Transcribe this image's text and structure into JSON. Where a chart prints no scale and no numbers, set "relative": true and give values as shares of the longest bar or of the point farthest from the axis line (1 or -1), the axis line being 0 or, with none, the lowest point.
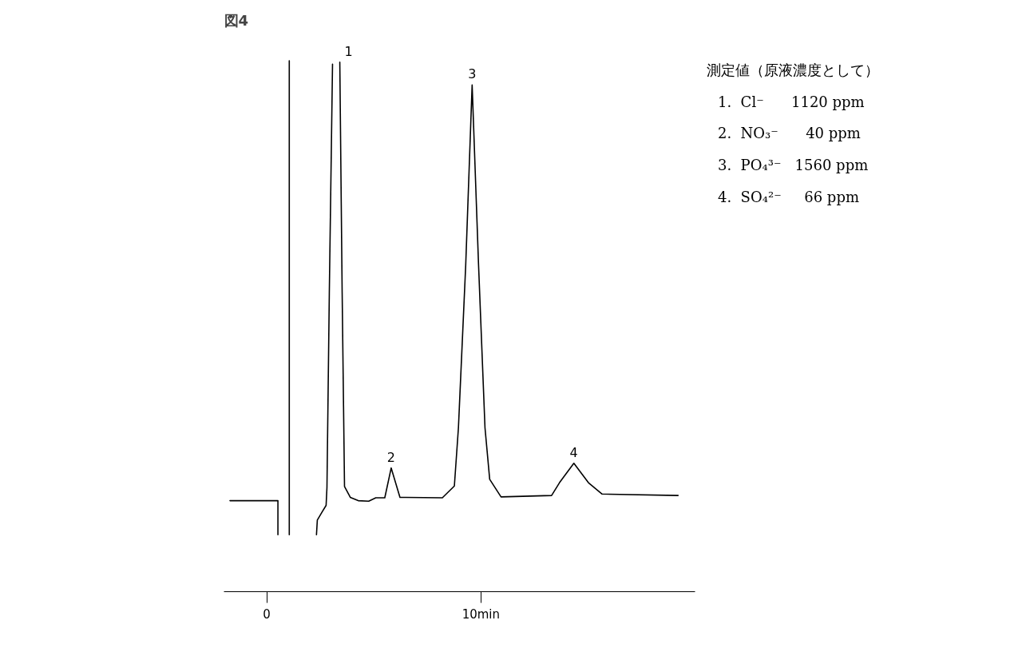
{
  "chart_data": {
    "type": "line",
    "title": "図4",
    "relative": true,
    "grid": false,
    "tick_labels": "x",
    "xlim": [
      -2,
      20
    ],
    "xticks": [
      0,
      {
        "value": 10,
        "label": "10min"
      }
    ],
    "series": [
      {
        "color": "#000000",
        "x": [
          -1.72,
          0.52,
          0.52
        ],
        "values": [
          0.072,
          0.072,
          0
        ]
      },
      {
        "color": "#000000",
        "x": [
          1.05,
          1.05
        ],
        "values": [
          0,
          1.0
        ]
      },
      {
        "color": "#000000",
        "x": [
          2.32,
          2.36,
          2.58,
          2.77,
          2.81,
          2.92,
          3.07
        ],
        "values": [
          0,
          0.031,
          0.048,
          0.062,
          0.1,
          0.51,
          0.993
        ]
      },
      {
        "color": "#000000",
        "x": [
          3.41,
          3.52,
          3.63,
          3.9,
          4.27,
          4.76,
          5.09,
          5.51,
          5.81,
          6.22,
          8.2,
          8.76,
          8.95,
          9.29,
          9.59,
          9.89,
          10.19,
          10.41,
          10.94,
          13.3,
          13.67,
          14.34,
          15.02,
          15.66,
          19.21
        ],
        "values": [
          0.997,
          0.51,
          0.102,
          0.079,
          0.072,
          0.071,
          0.078,
          0.078,
          0.141,
          0.079,
          0.078,
          0.103,
          0.226,
          0.569,
          0.949,
          0.569,
          0.226,
          0.117,
          0.08,
          0.083,
          0.11,
          0.151,
          0.11,
          0.086,
          0.083
        ]
      }
    ],
    "annotations": [
      {
        "text": "1",
        "x": 3.41,
        "y": 0.997
      },
      {
        "text": "2",
        "x": 5.81,
        "y": 0.141
      },
      {
        "text": "3",
        "x": 9.59,
        "y": 0.949
      },
      {
        "text": "4",
        "x": 14.34,
        "y": 0.151
      },
      "測定値（原液濃度として）",
      "1.  Cl⁻      1120 ppm",
      "2.  NO₃⁻      40 ppm",
      "3.  PO₄³⁻   1560 ppm",
      "4.  SO₄²⁻     66 ppm"
    ]
  }
}
